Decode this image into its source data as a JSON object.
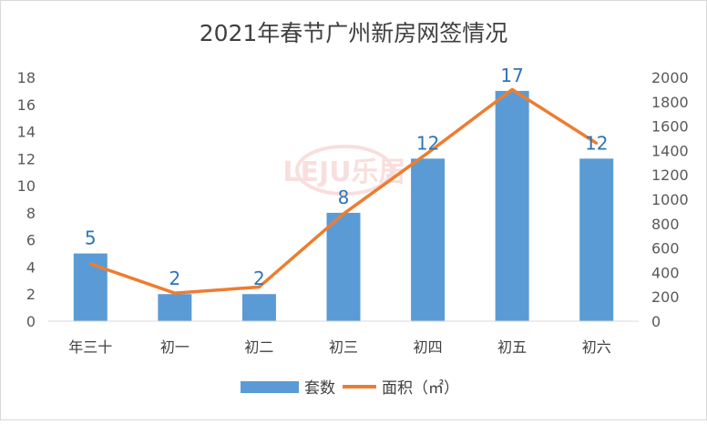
{
  "chart_data": {
    "type": "bar",
    "title": "2021年春节广州新房网签情况",
    "categories": [
      "年三十",
      "初一",
      "初二",
      "初三",
      "初四",
      "初五",
      "初六"
    ],
    "series": [
      {
        "name": "套数",
        "type": "bar",
        "axis": "left",
        "values": [
          5,
          2,
          2,
          8,
          12,
          17,
          12
        ],
        "color": "#5b9bd5"
      },
      {
        "name": "面积（㎡）",
        "type": "line",
        "axis": "right",
        "values": [
          470,
          230,
          280,
          880,
          1380,
          1900,
          1460
        ],
        "color": "#ed7d31"
      }
    ],
    "y_left": {
      "min": 0,
      "max": 18,
      "step": 2
    },
    "y_right": {
      "min": 0,
      "max": 2000,
      "step": 200
    },
    "data_label_color": "#2e75b6",
    "legend": {
      "position": "bottom"
    },
    "watermark": "LEJU乐居",
    "grid": false
  }
}
